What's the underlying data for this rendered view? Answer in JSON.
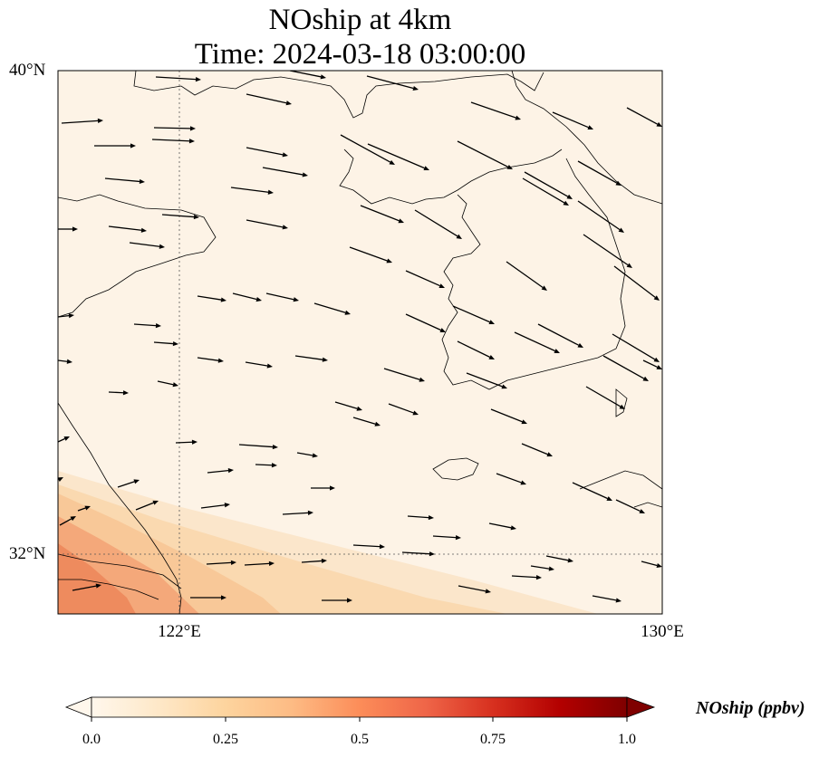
{
  "figure": {
    "title_line1": "NOship at 4km",
    "title_line2": "Time: 2024-03-18 03:00:00",
    "colorbar_label": "NOship (ppbv)",
    "colormap": "OrRd"
  },
  "axes": {
    "lat_labels": [
      "40°N",
      "32°N"
    ],
    "lon_labels": [
      "122°E",
      "130°E"
    ],
    "lon_range": [
      120,
      130
    ],
    "lat_range": [
      31,
      40
    ],
    "gridlines": [
      {
        "type": "lon",
        "value": 122
      },
      {
        "type": "lat",
        "value": 32
      }
    ]
  },
  "colorbar": {
    "ticks": [
      "0.0",
      "0.25",
      "0.5",
      "0.75",
      "1.0"
    ],
    "min": 0.0,
    "max": 1.0,
    "extend": "both",
    "colors": [
      "#fff7ec",
      "#fee8c8",
      "#fdd49e",
      "#fdbb84",
      "#fc8d59",
      "#ef6548",
      "#d7301f",
      "#b30000",
      "#7f0000"
    ]
  },
  "field": {
    "background_color": "#fdf3e6",
    "plume_colors": [
      "#fbe4c6",
      "#f9cfa1",
      "#f6b584",
      "#f19062"
    ]
  }
}
